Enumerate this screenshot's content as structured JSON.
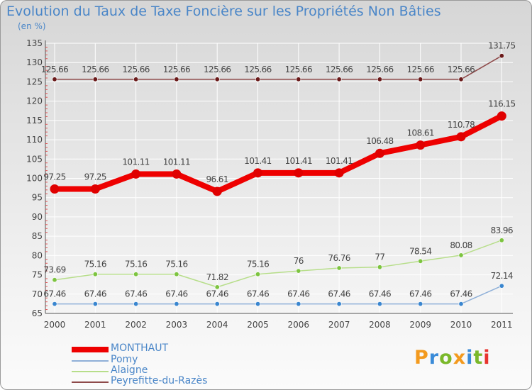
{
  "title": "Evolution du Taux de Taxe Foncière sur les Propriétés Non Bâties",
  "unit": "(en %)",
  "logo": {
    "text": "Proxiti",
    "colors": [
      "#f39a1e",
      "#3a8bd8",
      "#7ab82a",
      "#f39a1e",
      "#3a8bd8",
      "#7ab82a",
      "#e8342e"
    ]
  },
  "chart_data": {
    "type": "line",
    "x": [
      "2000",
      "2001",
      "2002",
      "2003",
      "2004",
      "2005",
      "2006",
      "2007",
      "2008",
      "2009",
      "2010",
      "2011"
    ],
    "ylim": [
      65,
      135
    ],
    "yticks": [
      65,
      70,
      75,
      80,
      85,
      90,
      95,
      100,
      105,
      110,
      115,
      120,
      125,
      130,
      135
    ],
    "grid": true,
    "series": [
      {
        "name": "MONTHAUT",
        "color": "#ee0000",
        "marker": "#e00000",
        "emphasis": true,
        "values": [
          97.25,
          97.25,
          101.11,
          101.11,
          96.61,
          101.41,
          101.41,
          101.41,
          106.48,
          108.61,
          110.78,
          116.15
        ],
        "labels": [
          "97.25",
          "97.25",
          "101.11",
          "101.11",
          "96.61",
          "101.41",
          "101.41",
          "101.41",
          "106.48",
          "108.61",
          "110.78",
          "116.15"
        ]
      },
      {
        "name": "Pomy",
        "color": "#8fb0d8",
        "marker": "#3a86cf",
        "values": [
          67.46,
          67.46,
          67.46,
          67.46,
          67.46,
          67.46,
          67.46,
          67.46,
          67.46,
          67.46,
          67.46,
          72.14
        ],
        "labels": [
          "67.46",
          "67.46",
          "67.46",
          "67.46",
          "67.46",
          "67.46",
          "67.46",
          "67.46",
          "67.46",
          "67.46",
          "67.46",
          "72.14"
        ]
      },
      {
        "name": "Alaigne",
        "color": "#b7de8a",
        "marker": "#7dc440",
        "values": [
          73.69,
          75.16,
          75.16,
          75.16,
          71.82,
          75.16,
          76,
          76.76,
          77,
          78.54,
          80.08,
          83.96
        ],
        "labels": [
          "73.69",
          "75.16",
          "75.16",
          "75.16",
          "71.82",
          "75.16",
          "76",
          "76.76",
          "77",
          "78.54",
          "80.08",
          "83.96"
        ]
      },
      {
        "name": "Peyrefitte-du-Razès",
        "color": "#8e4a4a",
        "marker": "#6a1a1a",
        "values": [
          125.66,
          125.66,
          125.66,
          125.66,
          125.66,
          125.66,
          125.66,
          125.66,
          125.66,
          125.66,
          125.66,
          131.75
        ],
        "labels": [
          "125.66",
          "125.66",
          "125.66",
          "125.66",
          "125.66",
          "125.66",
          "125.66",
          "125.66",
          "125.66",
          "125.66",
          "125.66",
          "131.75"
        ]
      }
    ]
  }
}
